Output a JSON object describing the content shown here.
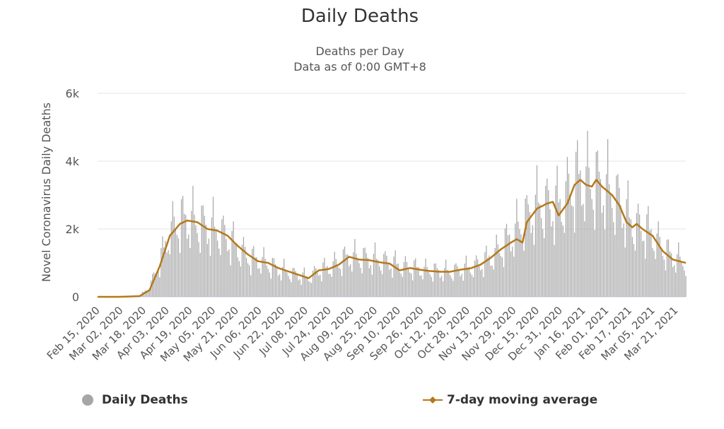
{
  "chart_data": {
    "type": "bar",
    "title": "Daily Deaths",
    "subtitle_lines": [
      "Deaths per Day",
      "Data as of 0:00 GMT+8"
    ],
    "ylabel": "Novel Coronavirus Daily Deaths",
    "xlabel": "",
    "ylim": [
      0,
      6000
    ],
    "y_ticks": [
      0,
      2000,
      4000,
      6000
    ],
    "y_tick_labels": [
      "0",
      "2k",
      "4k",
      "6k"
    ],
    "x_tick_labels": [
      "Feb 15, 2020",
      "Mar 02, 2020",
      "Mar 18, 2020",
      "Apr 03, 2020",
      "Apr 19, 2020",
      "May 05, 2020",
      "May 21, 2020",
      "Jun 06, 2020",
      "Jun 22, 2020",
      "Jul 08, 2020",
      "Jul 24, 2020",
      "Aug 09, 2020",
      "Aug 25, 2020",
      "Sep 10, 2020",
      "Sep 26, 2020",
      "Oct 12, 2020",
      "Oct 28, 2020",
      "Nov 13, 2020",
      "Nov 29, 2020",
      "Dec 15, 2020",
      "Dec 31, 2020",
      "Jan 16, 2021",
      "Feb 01, 2021",
      "Feb 17, 2021",
      "Mar 05, 2021",
      "Mar 21, 2021"
    ],
    "x_start_date": "2020-02-15",
    "x_end_date": "2021-03-28",
    "grid": true,
    "legend_position": "bottom",
    "colors": {
      "bars": "#a6a6a6",
      "moving_average": "#b5781a",
      "grid": "#e6e6e6"
    },
    "series": [
      {
        "name": "Daily Deaths",
        "type": "bar",
        "note": "daily values; weekly pattern (lower on weekends) around the moving average",
        "anchors": [
          [
            "2020-02-15",
            0
          ],
          [
            "2020-03-01",
            0
          ],
          [
            "2020-03-15",
            20
          ],
          [
            "2020-03-22",
            300
          ],
          [
            "2020-03-29",
            1000
          ],
          [
            "2020-04-05",
            1900
          ],
          [
            "2020-04-12",
            2200
          ],
          [
            "2020-04-19",
            2250
          ],
          [
            "2020-04-26",
            2100
          ],
          [
            "2020-05-03",
            2000
          ],
          [
            "2020-05-10",
            1900
          ],
          [
            "2020-05-17",
            1600
          ],
          [
            "2020-05-24",
            1350
          ],
          [
            "2020-05-31",
            1100
          ],
          [
            "2020-06-07",
            1050
          ],
          [
            "2020-06-14",
            900
          ],
          [
            "2020-06-21",
            780
          ],
          [
            "2020-06-28",
            680
          ],
          [
            "2020-07-05",
            600
          ],
          [
            "2020-07-10",
            560
          ],
          [
            "2020-07-17",
            760
          ],
          [
            "2020-07-24",
            850
          ],
          [
            "2020-07-31",
            1000
          ],
          [
            "2020-08-07",
            1180
          ],
          [
            "2020-08-14",
            1130
          ],
          [
            "2020-08-21",
            1100
          ],
          [
            "2020-08-28",
            1050
          ],
          [
            "2020-09-04",
            1000
          ],
          [
            "2020-09-11",
            900
          ],
          [
            "2020-09-18",
            850
          ],
          [
            "2020-09-25",
            800
          ],
          [
            "2020-10-02",
            760
          ],
          [
            "2020-10-09",
            740
          ],
          [
            "2020-10-16",
            730
          ],
          [
            "2020-10-23",
            780
          ],
          [
            "2020-10-30",
            850
          ],
          [
            "2020-11-06",
            950
          ],
          [
            "2020-11-13",
            1150
          ],
          [
            "2020-11-20",
            1400
          ],
          [
            "2020-11-27",
            1750
          ],
          [
            "2020-12-04",
            2100
          ],
          [
            "2020-12-11",
            2450
          ],
          [
            "2020-12-18",
            2700
          ],
          [
            "2020-12-25",
            2600
          ],
          [
            "2021-01-01",
            2700
          ],
          [
            "2021-01-08",
            3200
          ],
          [
            "2021-01-15",
            3450
          ],
          [
            "2021-01-22",
            3300
          ],
          [
            "2021-01-29",
            3250
          ],
          [
            "2021-02-05",
            3000
          ],
          [
            "2021-02-12",
            2600
          ],
          [
            "2021-02-19",
            2100
          ],
          [
            "2021-02-26",
            2000
          ],
          [
            "2021-03-05",
            1800
          ],
          [
            "2021-03-12",
            1400
          ],
          [
            "2021-03-19",
            1150
          ],
          [
            "2021-03-28",
            1000
          ]
        ]
      },
      {
        "name": "7-day moving average",
        "type": "line",
        "anchors": [
          [
            "2020-02-15",
            0
          ],
          [
            "2020-03-01",
            0
          ],
          [
            "2020-03-15",
            20
          ],
          [
            "2020-03-22",
            200
          ],
          [
            "2020-03-29",
            900
          ],
          [
            "2020-04-05",
            1800
          ],
          [
            "2020-04-12",
            2150
          ],
          [
            "2020-04-17",
            2250
          ],
          [
            "2020-04-24",
            2200
          ],
          [
            "2020-05-01",
            2000
          ],
          [
            "2020-05-08",
            1950
          ],
          [
            "2020-05-15",
            1800
          ],
          [
            "2020-05-22",
            1500
          ],
          [
            "2020-05-29",
            1250
          ],
          [
            "2020-06-05",
            1050
          ],
          [
            "2020-06-12",
            1000
          ],
          [
            "2020-06-19",
            850
          ],
          [
            "2020-06-26",
            750
          ],
          [
            "2020-07-03",
            650
          ],
          [
            "2020-07-10",
            550
          ],
          [
            "2020-07-17",
            780
          ],
          [
            "2020-07-24",
            820
          ],
          [
            "2020-07-31",
            950
          ],
          [
            "2020-08-07",
            1180
          ],
          [
            "2020-08-14",
            1100
          ],
          [
            "2020-08-21",
            1080
          ],
          [
            "2020-08-28",
            1020
          ],
          [
            "2020-09-04",
            980
          ],
          [
            "2020-09-11",
            780
          ],
          [
            "2020-09-18",
            850
          ],
          [
            "2020-09-25",
            800
          ],
          [
            "2020-10-02",
            760
          ],
          [
            "2020-10-09",
            740
          ],
          [
            "2020-10-16",
            740
          ],
          [
            "2020-10-23",
            800
          ],
          [
            "2020-10-30",
            840
          ],
          [
            "2020-11-06",
            950
          ],
          [
            "2020-11-13",
            1150
          ],
          [
            "2020-11-20",
            1400
          ],
          [
            "2020-11-27",
            1600
          ],
          [
            "2020-12-01",
            1700
          ],
          [
            "2020-12-05",
            1600
          ],
          [
            "2020-12-08",
            2200
          ],
          [
            "2020-12-15",
            2600
          ],
          [
            "2020-12-22",
            2750
          ],
          [
            "2020-12-26",
            2800
          ],
          [
            "2020-12-30",
            2400
          ],
          [
            "2021-01-05",
            2750
          ],
          [
            "2021-01-10",
            3300
          ],
          [
            "2021-01-14",
            3450
          ],
          [
            "2021-01-18",
            3300
          ],
          [
            "2021-01-22",
            3250
          ],
          [
            "2021-01-25",
            3450
          ],
          [
            "2021-01-29",
            3250
          ],
          [
            "2021-02-05",
            3000
          ],
          [
            "2021-02-10",
            2700
          ],
          [
            "2021-02-15",
            2200
          ],
          [
            "2021-02-19",
            2050
          ],
          [
            "2021-02-22",
            2150
          ],
          [
            "2021-02-26",
            2000
          ],
          [
            "2021-03-05",
            1800
          ],
          [
            "2021-03-12",
            1350
          ],
          [
            "2021-03-19",
            1100
          ],
          [
            "2021-03-28",
            1000
          ]
        ]
      }
    ]
  }
}
